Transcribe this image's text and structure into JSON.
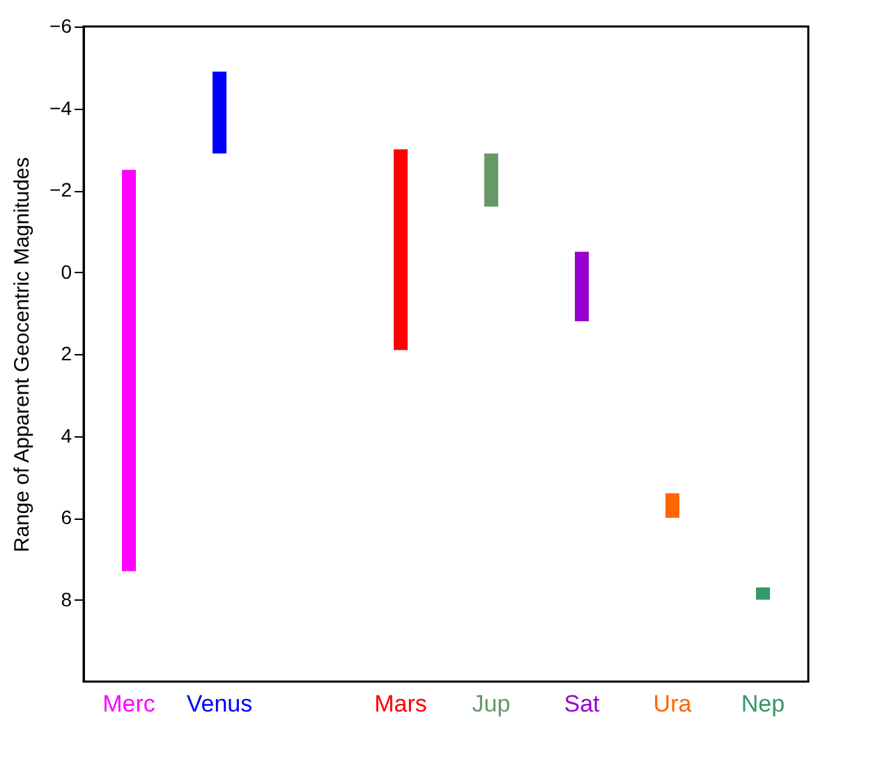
{
  "chart_data": {
    "type": "bar",
    "ylabel": "Range of Apparent Geocentric Magnitudes",
    "categories": [
      "Merc",
      "Venus",
      null,
      "Mars",
      "Jup",
      "Sat",
      "Ura",
      "Nep"
    ],
    "base": [
      -2.5,
      -4.9,
      null,
      -3.0,
      -2.9,
      -0.5,
      5.4,
      7.7
    ],
    "values": [
      9.8,
      2.0,
      null,
      4.9,
      1.3,
      1.7,
      0.6,
      0.3
    ],
    "colors": [
      "#ff00ff",
      "#0000ff",
      "#888888",
      "#ff0000",
      "#669966",
      "#9900cc",
      "#ff6600",
      "#339966"
    ],
    "ylim": [
      10,
      -6
    ],
    "yticks": [
      -6,
      -4,
      -2,
      0,
      2,
      4,
      6,
      8
    ],
    "grid": false
  }
}
